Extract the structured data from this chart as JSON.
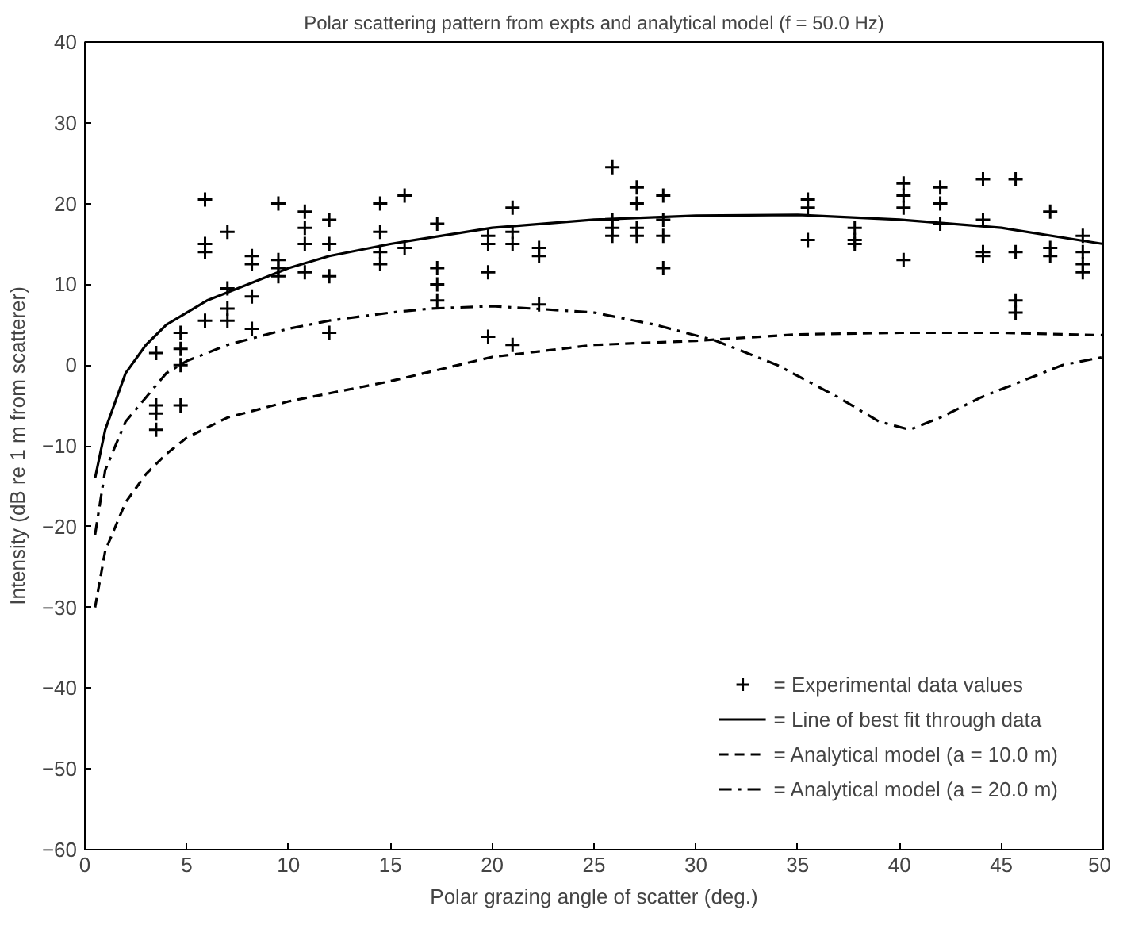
{
  "chart_data": {
    "type": "scatter",
    "title": "Polar scattering pattern from expts and analytical model (f = 50.0 Hz)",
    "xlabel": "Polar grazing angle of scatter (deg.)",
    "ylabel": "Intensity (dB re 1 m from scatterer)",
    "xlim": [
      0,
      50
    ],
    "ylim": [
      -60,
      40
    ],
    "xticks": [
      0,
      5,
      10,
      15,
      20,
      25,
      30,
      35,
      40,
      45,
      50
    ],
    "yticks": [
      -60,
      -50,
      -40,
      -30,
      -20,
      -10,
      0,
      10,
      20,
      30,
      40
    ],
    "grid": false,
    "legend": "bottom right",
    "series": [
      {
        "name": "= Experimental data values",
        "marker": "cross",
        "color": "#000000",
        "x": [
          3.5,
          3.5,
          3.5,
          3.5,
          4.7,
          4.7,
          4.7,
          4.7,
          5.9,
          5.9,
          5.9,
          5.9,
          7.0,
          7.0,
          7.0,
          7.0,
          8.2,
          8.2,
          8.2,
          8.2,
          9.5,
          9.5,
          9.5,
          9.5,
          10.8,
          10.8,
          10.8,
          10.8,
          12.0,
          12.0,
          12.0,
          12.0,
          14.5,
          14.5,
          14.5,
          14.5,
          15.7,
          15.7,
          17.3,
          17.3,
          17.3,
          17.3,
          19.8,
          19.8,
          19.8,
          19.8,
          21.0,
          21.0,
          21.0,
          21.0,
          22.3,
          22.3,
          22.3,
          25.9,
          25.9,
          25.9,
          25.9,
          27.1,
          27.1,
          27.1,
          27.1,
          28.4,
          28.4,
          28.4,
          28.4,
          35.5,
          35.5,
          35.5,
          37.8,
          37.8,
          37.8,
          40.2,
          40.2,
          40.2,
          40.2,
          42.0,
          42.0,
          42.0,
          44.1,
          44.1,
          44.1,
          44.1,
          45.7,
          45.7,
          45.7,
          45.7,
          47.4,
          47.4,
          47.4,
          49.0,
          49.0,
          49.0,
          49.0
        ],
        "values": [
          -5,
          -6,
          -8,
          1.5,
          4,
          2,
          0,
          -5,
          20.5,
          15,
          14,
          5.5,
          16.5,
          9.5,
          7,
          5.5,
          13.5,
          12.5,
          8.5,
          4.5,
          20,
          13,
          12,
          11,
          19,
          17,
          15,
          11.5,
          18,
          15,
          11,
          4,
          20,
          16.5,
          14,
          12.5,
          21,
          14.5,
          17.5,
          12,
          10,
          8,
          16,
          15,
          11.5,
          3.5,
          19.5,
          16.5,
          15,
          2.5,
          14.5,
          13.5,
          7.5,
          24.5,
          18,
          17,
          16,
          22,
          20,
          17,
          16,
          21,
          18,
          16,
          12,
          20.5,
          19.5,
          15.5,
          17,
          15.5,
          15,
          22.5,
          21,
          19.5,
          13,
          22,
          20,
          17.5,
          23,
          18,
          14,
          13.5,
          23,
          14,
          8,
          6.5,
          19,
          14.5,
          13.5,
          16,
          14,
          12.5,
          11.5
        ]
      },
      {
        "name": "= Line of best fit through data",
        "type": "line",
        "line_style": "solid",
        "color": "#000000",
        "x": [
          0.5,
          1,
          2,
          3,
          4,
          6,
          8,
          10,
          12,
          15,
          20,
          25,
          30,
          35,
          40,
          45,
          50
        ],
        "values": [
          -14,
          -8,
          -1,
          2.5,
          5,
          8,
          10,
          12,
          13.5,
          15,
          17,
          18,
          18.5,
          18.6,
          18,
          17,
          15
        ]
      },
      {
        "name": "= Analytical model (a = 10.0 m)",
        "type": "line",
        "line_style": "dashed",
        "color": "#000000",
        "x": [
          0.5,
          1,
          1.5,
          2,
          3,
          4,
          5,
          7,
          10,
          15,
          20,
          25,
          30,
          35,
          40,
          45,
          50
        ],
        "values": [
          -30,
          -23,
          -20,
          -17,
          -13.5,
          -11,
          -9,
          -6.5,
          -4.5,
          -2,
          1,
          2.5,
          3,
          3.8,
          4,
          4,
          3.7
        ]
      },
      {
        "name": "= Analytical model (a = 20.0 m)",
        "type": "line",
        "line_style": "dashdot",
        "color": "#000000",
        "x": [
          0.5,
          1,
          2,
          3,
          4,
          5,
          7,
          10,
          12,
          15,
          17,
          20,
          22,
          25,
          28,
          31,
          34,
          37,
          39,
          40.5,
          42,
          44,
          46,
          48,
          50
        ],
        "values": [
          -21,
          -13,
          -7,
          -4,
          -1,
          0.5,
          2.5,
          4.5,
          5.5,
          6.5,
          7,
          7.3,
          7,
          6.5,
          5,
          3,
          0,
          -4,
          -7,
          -8,
          -6.5,
          -4,
          -2,
          0,
          1
        ]
      }
    ]
  }
}
